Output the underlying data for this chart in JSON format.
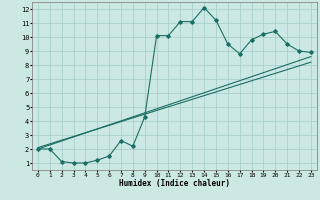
{
  "xlabel": "Humidex (Indice chaleur)",
  "bg_color": "#cce8e4",
  "grid_color": "#aacfcb",
  "line_color": "#1a6e64",
  "xlim": [
    -0.5,
    23.5
  ],
  "ylim": [
    0.5,
    12.5
  ],
  "xticks": [
    0,
    1,
    2,
    3,
    4,
    5,
    6,
    7,
    8,
    9,
    10,
    11,
    12,
    13,
    14,
    15,
    16,
    17,
    18,
    19,
    20,
    21,
    22,
    23
  ],
  "yticks": [
    1,
    2,
    3,
    4,
    5,
    6,
    7,
    8,
    9,
    10,
    11,
    12
  ],
  "jagged_x": [
    0,
    1,
    2,
    3,
    4,
    5,
    6,
    7,
    8,
    9,
    10,
    11,
    12,
    13,
    14,
    15,
    16,
    17,
    18,
    19,
    20,
    21,
    22,
    23
  ],
  "jagged_y": [
    2.0,
    2.0,
    1.1,
    1.0,
    1.0,
    1.2,
    1.5,
    2.6,
    2.2,
    4.3,
    10.1,
    10.1,
    11.1,
    11.1,
    12.1,
    11.2,
    9.5,
    8.8,
    9.8,
    10.2,
    10.4,
    9.5,
    9.0,
    8.9
  ],
  "trend1_x": [
    0,
    23
  ],
  "trend1_y": [
    2.0,
    8.6
  ],
  "trend2_x": [
    0,
    23
  ],
  "trend2_y": [
    2.1,
    8.2
  ]
}
